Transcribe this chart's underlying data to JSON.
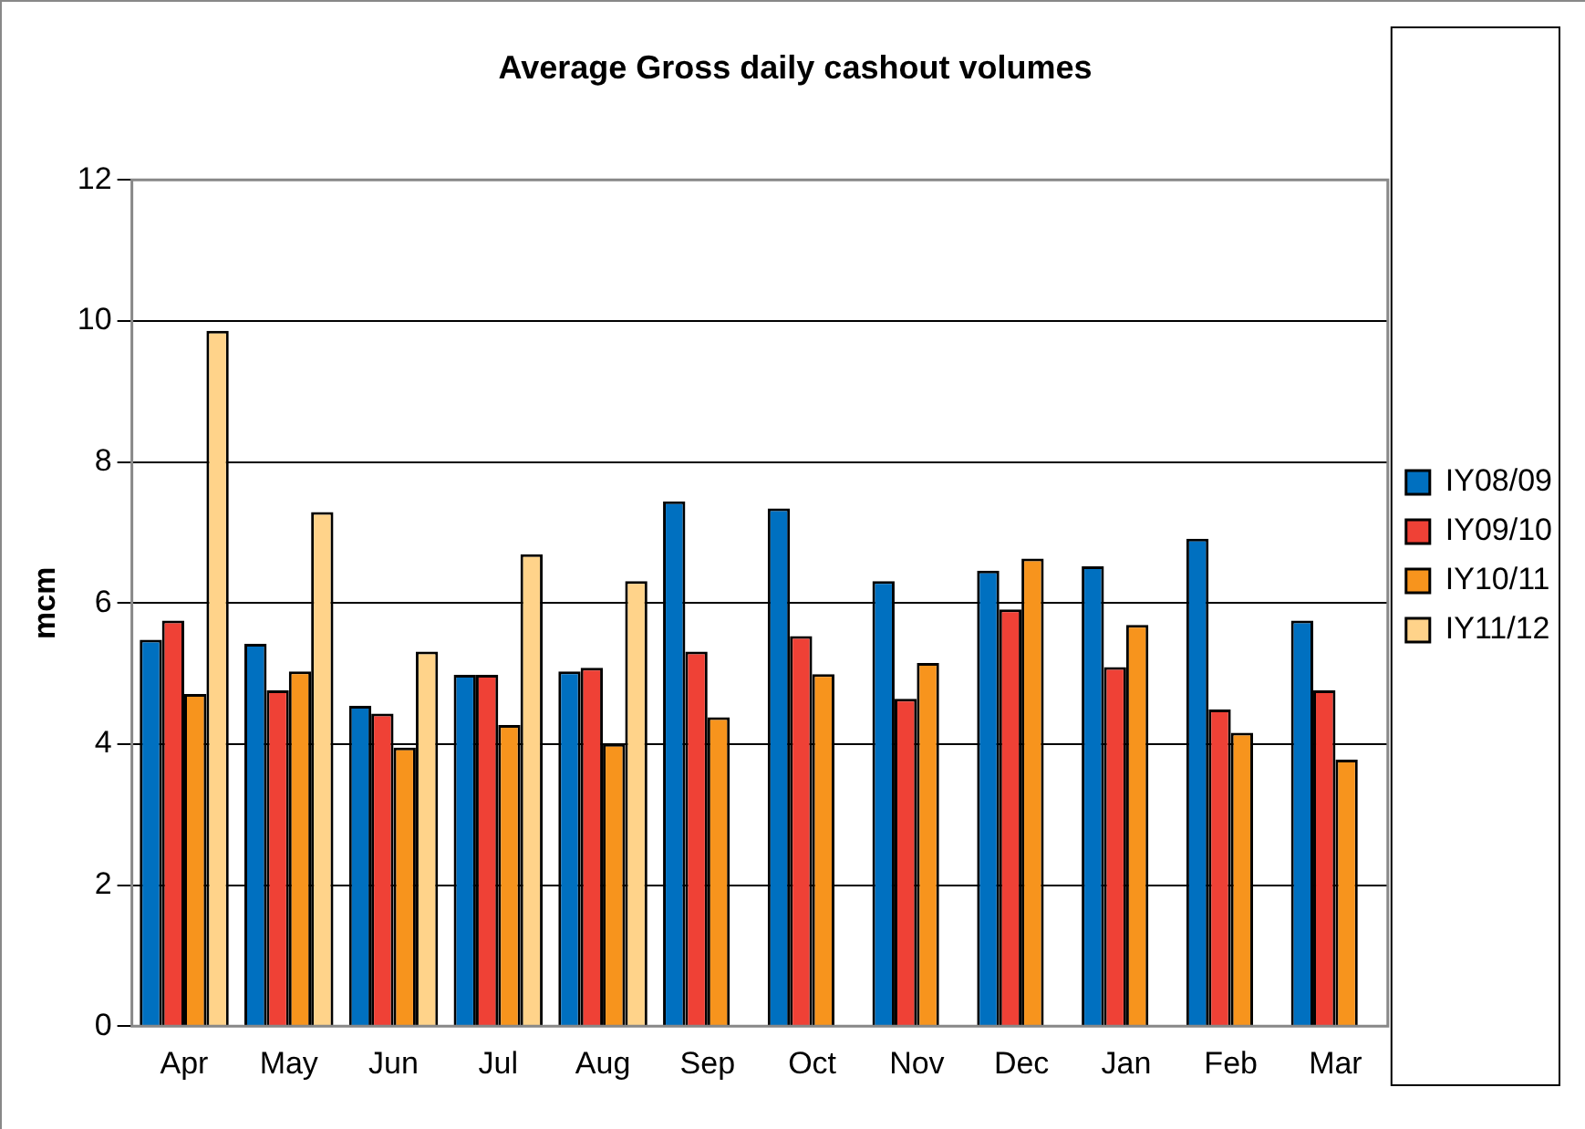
{
  "chart_data": {
    "type": "bar",
    "title": "Average Gross daily cashout volumes",
    "ylabel": "mcm",
    "categories": [
      "Apr",
      "May",
      "Jun",
      "Jul",
      "Aug",
      "Sep",
      "Oct",
      "Nov",
      "Dec",
      "Jan",
      "Feb",
      "Mar"
    ],
    "series": [
      {
        "name": "IY08/09",
        "color": "#0070c0",
        "values": [
          5.48,
          5.42,
          4.54,
          4.98,
          5.03,
          7.44,
          7.34,
          6.31,
          6.46,
          6.52,
          6.91,
          5.75
        ]
      },
      {
        "name": "IY09/10",
        "color": "#ef4136",
        "values": [
          5.75,
          4.76,
          4.43,
          4.98,
          5.08,
          5.31,
          5.53,
          4.64,
          5.91,
          5.09,
          4.49,
          4.76
        ]
      },
      {
        "name": "IY10/11",
        "color": "#f7941d",
        "values": [
          4.71,
          5.03,
          3.95,
          4.27,
          4.0,
          4.38,
          4.99,
          5.15,
          6.63,
          5.69,
          4.16,
          3.78
        ]
      },
      {
        "name": "IY11/12",
        "color": "#ffd38a",
        "values": [
          9.86,
          7.29,
          5.31,
          6.69,
          6.31,
          null,
          null,
          null,
          null,
          null,
          null,
          null
        ]
      }
    ],
    "ylim": [
      0,
      12
    ],
    "yticks": [
      0,
      2,
      4,
      6,
      8,
      10,
      12
    ],
    "grid": "y",
    "legend": "right"
  }
}
